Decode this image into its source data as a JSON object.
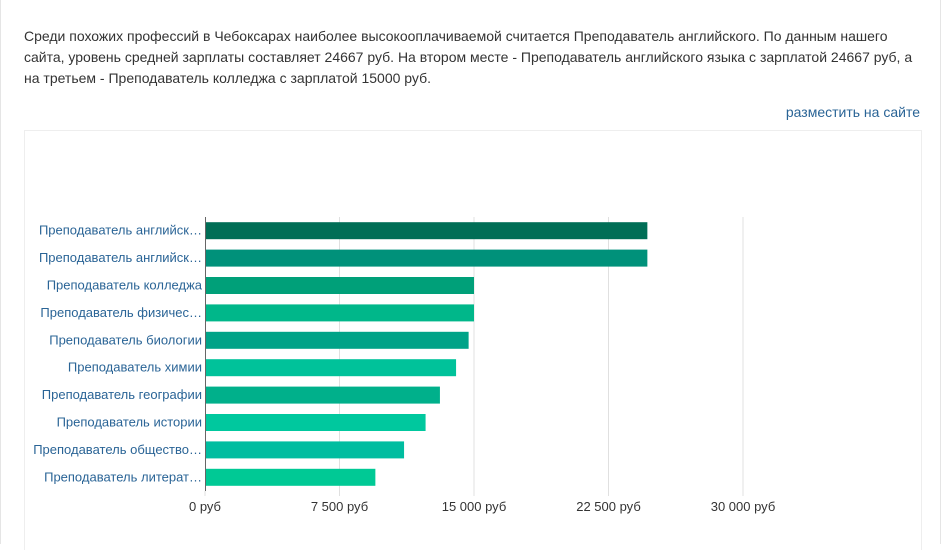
{
  "intro": {
    "text": "Среди похожих профессий в Чебоксарах наиболее высокооплачиваемой считается Преподаватель английского. По данным нашего сайта, уровень средней зарплаты составляет 24667 руб. На втором месте - Преподаватель английского языка с зарплатой 24667 руб, а на третьем - Преподаватель колледжа с зарплатой 15000 руб."
  },
  "embed_link": "разместить на сайте",
  "chart_data": {
    "type": "bar",
    "orientation": "horizontal",
    "categories": [
      "Преподаватель английск…",
      "Преподаватель английск…",
      "Преподаватель колледжа",
      "Преподаватель физичес…",
      "Преподаватель биологии",
      "Преподаватель химии",
      "Преподаватель географии",
      "Преподаватель истории",
      "Преподаватель общество…",
      "Преподаватель литерат…"
    ],
    "values": [
      24667,
      24667,
      15000,
      15000,
      14700,
      14000,
      13100,
      12300,
      11100,
      9500
    ],
    "colors": [
      "#006e56",
      "#00917a",
      "#00a079",
      "#00b78a",
      "#00a388",
      "#00c29a",
      "#00b08b",
      "#00c89e",
      "#00bda0",
      "#00c995"
    ],
    "xlim": [
      0,
      30000
    ],
    "xticks": [
      0,
      7500,
      15000,
      22500,
      30000
    ],
    "xtick_labels": [
      "0 руб",
      "7 500 руб",
      "15 000 руб",
      "22 500 руб",
      "30 000 руб"
    ],
    "grid": true
  }
}
